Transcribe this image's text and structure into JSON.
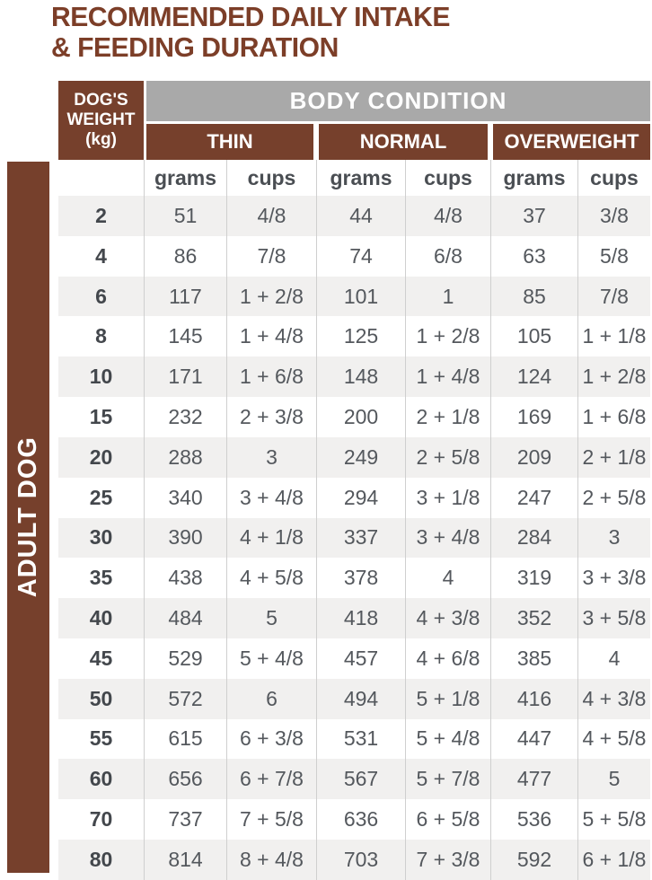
{
  "title": {
    "line1": "RECOMMENDED DAILY INTAKE",
    "line2": "& FEEDING DURATION"
  },
  "rail": {
    "label": "ADULT DOG"
  },
  "table": {
    "weight_header": {
      "line1": "DOG'S",
      "line2": "WEIGHT",
      "line3": "(kg)"
    },
    "body_condition_label": "BODY CONDITION",
    "condition_groups": [
      "THIN",
      "NORMAL",
      "OVERWEIGHT"
    ],
    "unit_headers": [
      "grams",
      "cups",
      "grams",
      "cups",
      "grams",
      "cups"
    ],
    "rows": [
      [
        "2",
        "51",
        "4/8",
        "44",
        "4/8",
        "37",
        "3/8"
      ],
      [
        "4",
        "86",
        "7/8",
        "74",
        "6/8",
        "63",
        "5/8"
      ],
      [
        "6",
        "117",
        "1 + 2/8",
        "101",
        "1",
        "85",
        "7/8"
      ],
      [
        "8",
        "145",
        "1 + 4/8",
        "125",
        "1 + 2/8",
        "105",
        "1 + 1/8"
      ],
      [
        "10",
        "171",
        "1 + 6/8",
        "148",
        "1 + 4/8",
        "124",
        "1 + 2/8"
      ],
      [
        "15",
        "232",
        "2 + 3/8",
        "200",
        "2 + 1/8",
        "169",
        "1 + 6/8"
      ],
      [
        "20",
        "288",
        "3",
        "249",
        "2 + 5/8",
        "209",
        "2 + 1/8"
      ],
      [
        "25",
        "340",
        "3 + 4/8",
        "294",
        "3 + 1/8",
        "247",
        "2 + 5/8"
      ],
      [
        "30",
        "390",
        "4 + 1/8",
        "337",
        "3 + 4/8",
        "284",
        "3"
      ],
      [
        "35",
        "438",
        "4 + 5/8",
        "378",
        "4",
        "319",
        "3 + 3/8"
      ],
      [
        "40",
        "484",
        "5",
        "418",
        "4 + 3/8",
        "352",
        "3 + 5/8"
      ],
      [
        "45",
        "529",
        "5 + 4/8",
        "457",
        "4 + 6/8",
        "385",
        "4"
      ],
      [
        "50",
        "572",
        "6",
        "494",
        "5 + 1/8",
        "416",
        "4 + 3/8"
      ],
      [
        "55",
        "615",
        "6 + 3/8",
        "531",
        "5 + 4/8",
        "447",
        "4 + 5/8"
      ],
      [
        "60",
        "656",
        "6 + 7/8",
        "567",
        "5 + 7/8",
        "477",
        "5"
      ],
      [
        "70",
        "737",
        "7 + 5/8",
        "636",
        "6 + 5/8",
        "536",
        "5 + 5/8"
      ],
      [
        "80",
        "814",
        "8 + 4/8",
        "703",
        "7 + 3/8",
        "592",
        "6 + 1/8"
      ]
    ]
  },
  "colors": {
    "brown": "#76402c",
    "title_brown": "#7c3e28",
    "header_gray": "#a9a9a9",
    "zebra_gray": "#f1f0ef",
    "value_text": "#54585d"
  }
}
